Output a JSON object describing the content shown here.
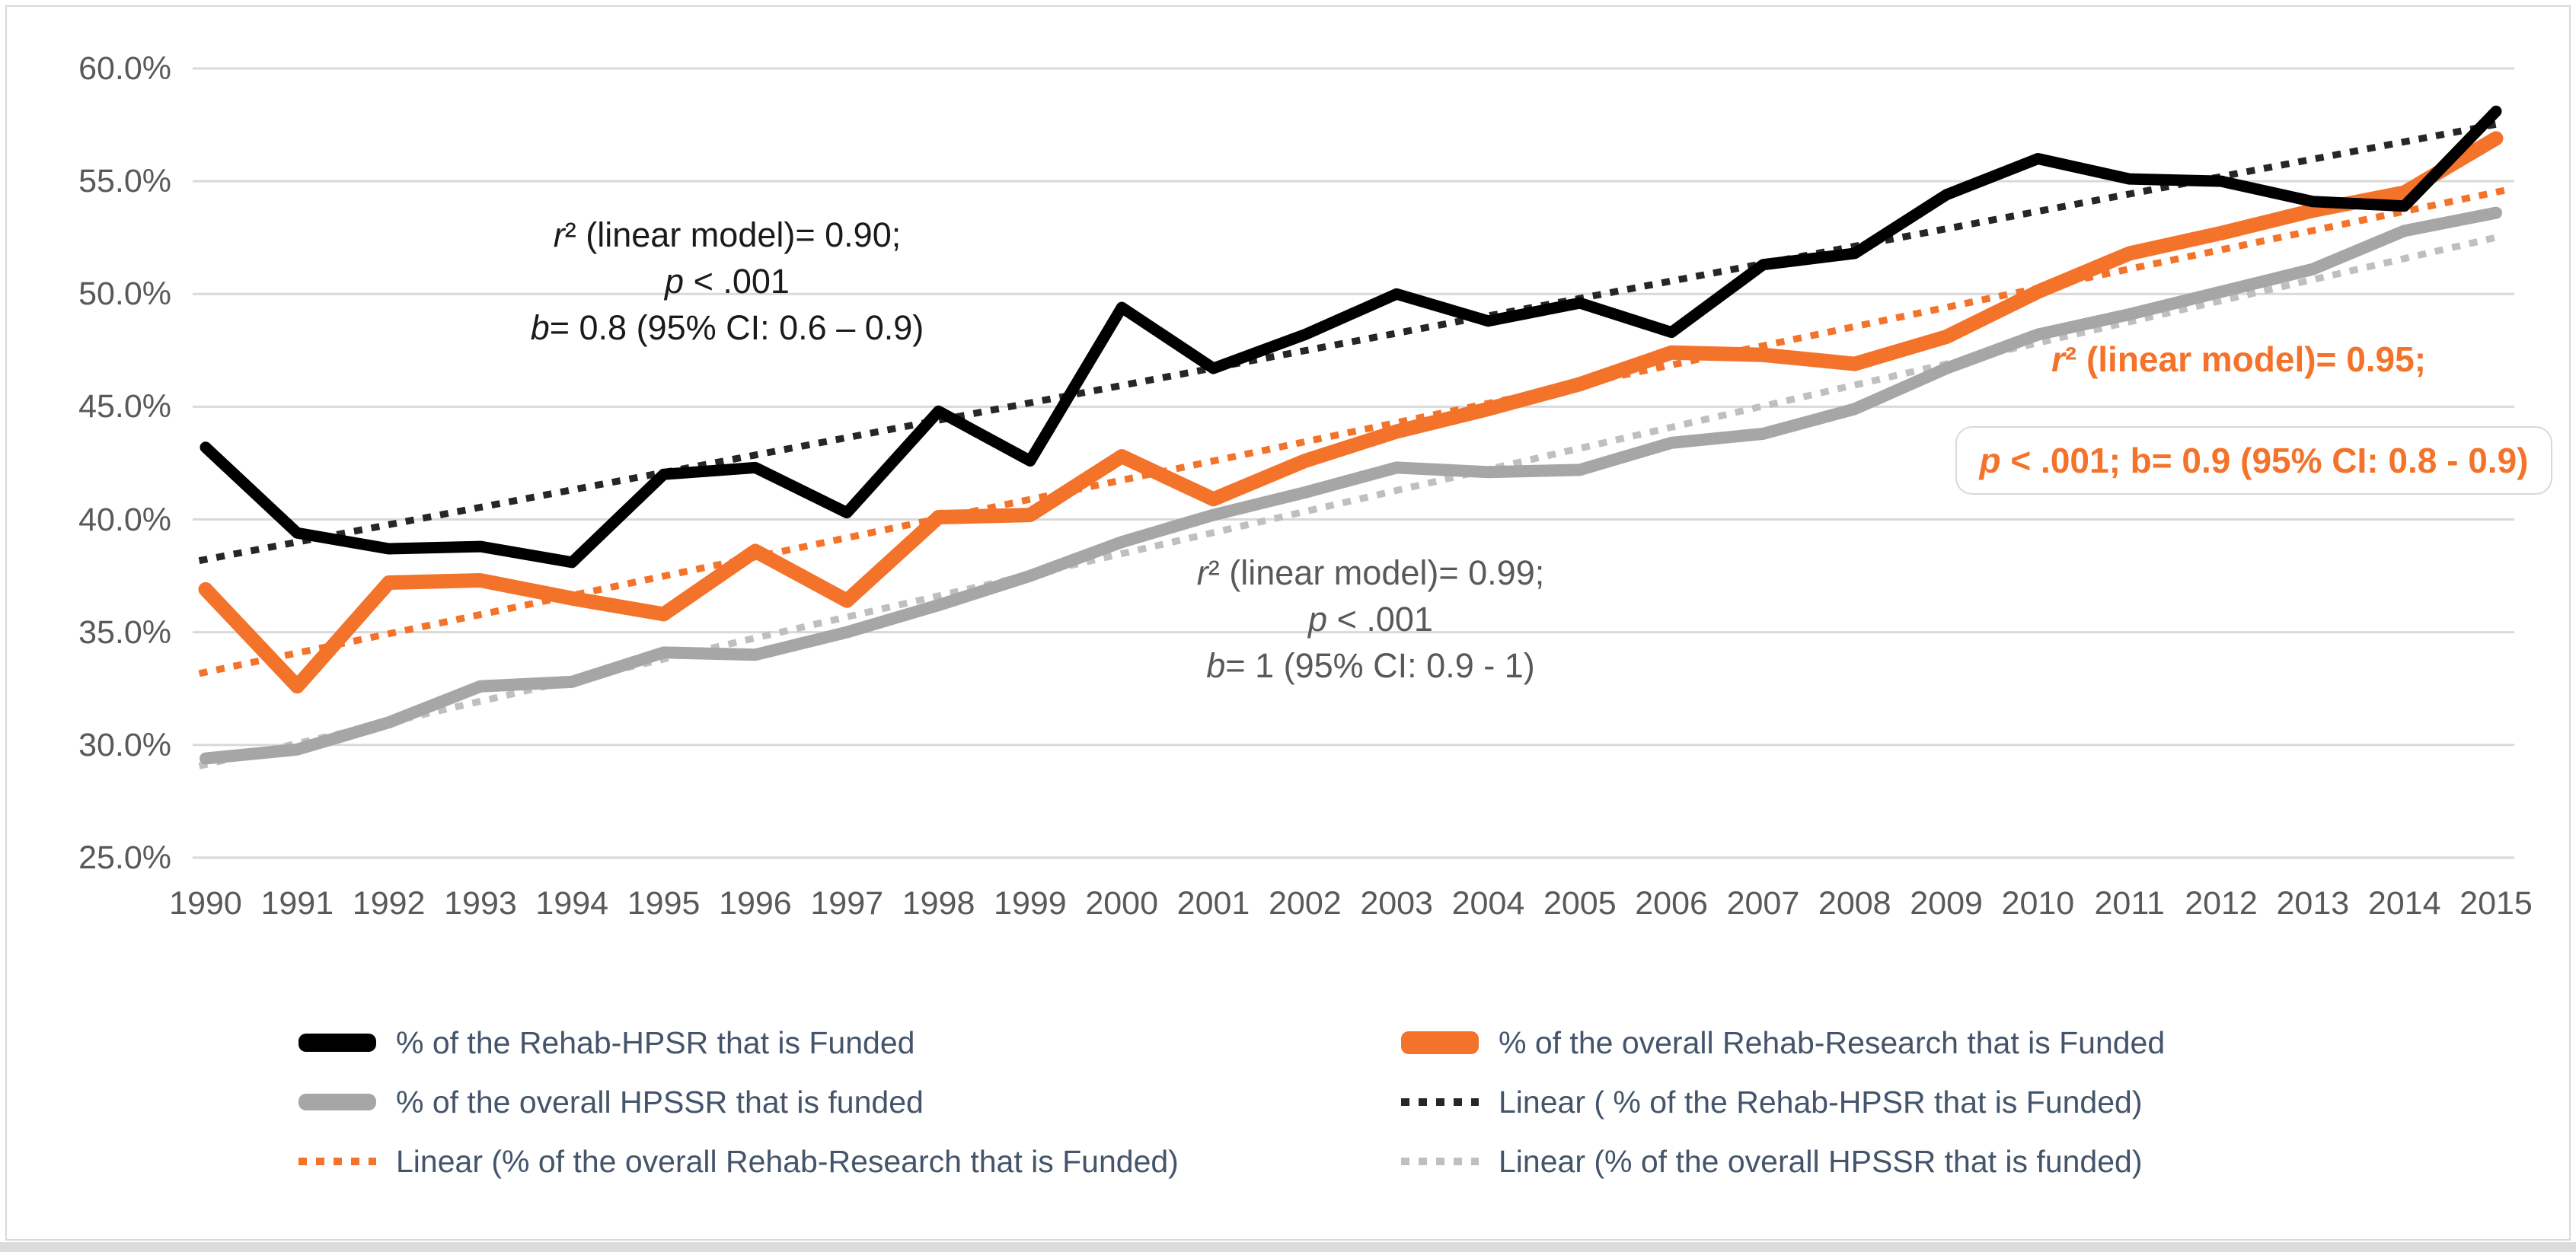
{
  "chart_data": {
    "type": "line",
    "x": [
      1990,
      1991,
      1992,
      1993,
      1994,
      1995,
      1996,
      1997,
      1998,
      1999,
      2000,
      2001,
      2002,
      2003,
      2004,
      2005,
      2006,
      2007,
      2008,
      2009,
      2010,
      2011,
      2012,
      2013,
      2014,
      2015
    ],
    "ylim": [
      25,
      60
    ],
    "ytick_values": [
      60,
      55,
      50,
      45,
      40,
      35,
      30,
      25
    ],
    "ytick_labels": [
      "60.0%",
      "55.0%",
      "50.0%",
      "45.0%",
      "40.0%",
      "35.0%",
      "30.0%",
      "25.0%"
    ],
    "grid": true,
    "legend_position": "bottom",
    "series": [
      {
        "key": "rehab-hpsr",
        "name": "% of the Rehab-HPSR that is Funded",
        "style": "solid",
        "color": "#000000",
        "values": [
          43.2,
          39.4,
          38.7,
          38.8,
          38.1,
          42.0,
          42.3,
          40.3,
          44.8,
          42.6,
          49.4,
          46.7,
          48.2,
          50.0,
          48.8,
          49.6,
          48.3,
          51.3,
          51.8,
          54.4,
          56.0,
          55.1,
          55.0,
          54.1,
          53.9,
          58.1
        ]
      },
      {
        "key": "rehab-research",
        "name": "% of the overall Rehab-Research that is Funded",
        "style": "solid",
        "color": "#F4732B",
        "values": [
          36.9,
          32.6,
          37.2,
          37.3,
          36.5,
          35.8,
          38.6,
          36.4,
          40.1,
          40.2,
          42.8,
          40.9,
          42.6,
          43.9,
          44.9,
          46.0,
          47.4,
          47.3,
          46.9,
          48.1,
          50.1,
          51.8,
          52.7,
          53.7,
          54.5,
          56.9
        ]
      },
      {
        "key": "hpssr",
        "name": "% of the overall HPSSR that is funded",
        "style": "solid",
        "color": "#A6A6A6",
        "values": [
          29.4,
          29.8,
          31.0,
          32.6,
          32.8,
          34.1,
          34.0,
          35.0,
          36.2,
          37.5,
          39.0,
          40.2,
          41.2,
          42.3,
          42.1,
          42.2,
          43.4,
          43.8,
          44.9,
          46.7,
          48.2,
          49.1,
          50.1,
          51.1,
          52.8,
          53.6
        ]
      },
      {
        "key": "rehab-hpsr-trend",
        "name": "Linear ( % of the Rehab-HPSR that is Funded)",
        "style": "dotted",
        "color": "#262626",
        "trend_endpoints": [
          38.2,
          57.6
        ]
      },
      {
        "key": "rehab-research-trend",
        "name": "Linear (% of the overall Rehab-Research that is Funded)",
        "style": "dotted",
        "color": "#F4732B",
        "trend_endpoints": [
          33.2,
          54.6
        ]
      },
      {
        "key": "hpssr-trend",
        "name": "Linear (% of the overall HPSSR that is funded)",
        "style": "dotted",
        "color": "#BFBFBF",
        "trend_endpoints": [
          29.1,
          52.6
        ]
      }
    ]
  },
  "annotations": {
    "rehab_hpsr": {
      "color": "#1a1a1a",
      "lines": [
        "r² (linear model)= 0.90;",
        "p < .001",
        "b= 0.8 (95% CI: 0.6 – 0.9)"
      ]
    },
    "hpssr": {
      "color": "#595959",
      "lines": [
        "r² (linear model)= 0.99;",
        "p < .001",
        "b= 1 (95% CI: 0.9 - 1)"
      ]
    },
    "rehab_research": {
      "color": "#F4732B",
      "lines": [
        "r² (linear model)= 0.95;",
        "p < .001; b= 0.9 (95% CI: 0.8 - 0.9)"
      ]
    }
  },
  "legend": {
    "left": [
      {
        "key": "rehab-hpsr",
        "swatch": "solid",
        "color": "#000000",
        "label": "% of the Rehab-HPSR that is Funded"
      },
      {
        "key": "hpssr",
        "swatch": "solid",
        "color": "#A6A6A6",
        "label": "% of the overall HPSSR that is funded"
      },
      {
        "key": "rehab-research-trend",
        "swatch": "dotted",
        "color": "#F4732B",
        "label": "Linear (% of the overall Rehab-Research that is Funded)"
      }
    ],
    "right": [
      {
        "key": "rehab-research",
        "swatch": "solid",
        "color": "#F4732B",
        "label": "% of the overall Rehab-Research that is Funded"
      },
      {
        "key": "rehab-hpsr-trend",
        "swatch": "dotted",
        "color": "#262626",
        "label": "Linear ( % of the Rehab-HPSR that is Funded)"
      },
      {
        "key": "hpssr-trend",
        "swatch": "dotted",
        "color": "#BFBFBF",
        "label": "Linear (% of the overall HPSSR that is funded)"
      }
    ]
  }
}
